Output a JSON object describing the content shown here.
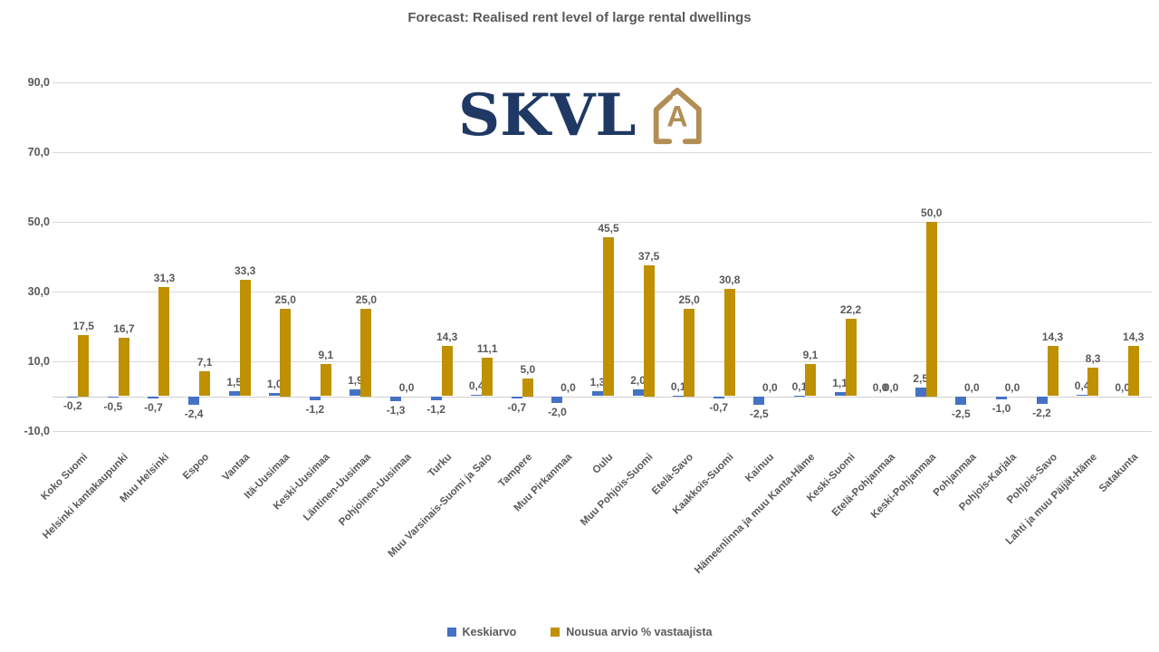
{
  "logo": {
    "text": "SKVL",
    "icon_letter": "A",
    "navy": "#1F3864",
    "tan": "#B28E55"
  },
  "chart_data": {
    "type": "bar",
    "title": "Forecast: Realised rent level of large rental dwellings",
    "grid": true,
    "legend_position": "bottom",
    "y_axis": {
      "min": -10,
      "max": 90,
      "ticks": [
        {
          "label": "90,0",
          "value": 90
        },
        {
          "label": "70,0",
          "value": 70
        },
        {
          "label": "50,0",
          "value": 50
        },
        {
          "label": "30,0",
          "value": 30
        },
        {
          "label": "10,0",
          "value": 10
        },
        {
          "label": "-10,0",
          "value": -10
        }
      ]
    },
    "categories": [
      "Koko Suomi",
      "Helsinki kantakaupunki",
      "Muu Helsinki",
      "Espoo",
      "Vantaa",
      "Itä-Uusimaa",
      "Keski-Uusimaa",
      "Läntinen-Uusimaa",
      "Pohjoinen-Uusimaa",
      "Turku",
      "Muu Varsinais-Suomi ja Salo",
      "Tampere",
      "Muu Pirkanmaa",
      "Oulu",
      "Muu Pohjois-Suomi",
      "Etelä-Savo",
      "Kaakkois-Suomi",
      "Kainuu",
      "Hämeenlinna ja muu Kanta-Häme",
      "Keski-Suomi",
      "Etelä-Pohjanmaa",
      "Keski-Pohjanmaa",
      "Pohjanmaa",
      "Pohjois-Karjala",
      "Pohjois-Savo",
      "Lahti ja muu Päijät-Häme",
      "Satakunta"
    ],
    "series": [
      {
        "name": "Keskiarvo",
        "color": "#4472C4",
        "values": [
          -0.2,
          -0.5,
          -0.7,
          -2.4,
          1.5,
          1.0,
          -1.2,
          1.9,
          -1.3,
          -1.2,
          0.4,
          -0.7,
          -2.0,
          1.3,
          2.0,
          0.1,
          -0.7,
          -2.5,
          0.1,
          1.1,
          0.0,
          2.5,
          -2.5,
          -1.0,
          -2.2,
          0.4,
          0.0
        ],
        "labels": [
          "-0,2",
          "-0,5",
          "-0,7",
          "-2,4",
          "1,5",
          "1,0",
          "-1,2",
          "1,9",
          "-1,3",
          "-1,2",
          "0,4",
          "-0,7",
          "-2,0",
          "1,3",
          "2,0",
          "0,1",
          "-0,7",
          "-2,5",
          "0,1",
          "1,1",
          "0,0",
          "2,5",
          "-2,5",
          "-1,0",
          "-2,2",
          "0,4",
          "0,0"
        ]
      },
      {
        "name": "Nousua arvio % vastaajista",
        "color": "#BF9000",
        "values": [
          17.5,
          16.7,
          31.3,
          7.1,
          33.3,
          25.0,
          9.1,
          25.0,
          0.0,
          14.3,
          11.1,
          5.0,
          0.0,
          45.5,
          37.5,
          25.0,
          30.8,
          0.0,
          9.1,
          22.2,
          0.0,
          50.0,
          0.0,
          0.0,
          14.3,
          8.3,
          14.3
        ],
        "labels": [
          "17,5",
          "16,7",
          "31,3",
          "7,1",
          "33,3",
          "25,0",
          "9,1",
          "25,0",
          "0,0",
          "14,3",
          "11,1",
          "5,0",
          "0,0",
          "45,5",
          "37,5",
          "25,0",
          "30,8",
          "0,0",
          "9,1",
          "22,2",
          "0,0",
          "50,0",
          "0,0",
          "0,0",
          "14,3",
          "8,3",
          "14,3"
        ]
      }
    ]
  }
}
